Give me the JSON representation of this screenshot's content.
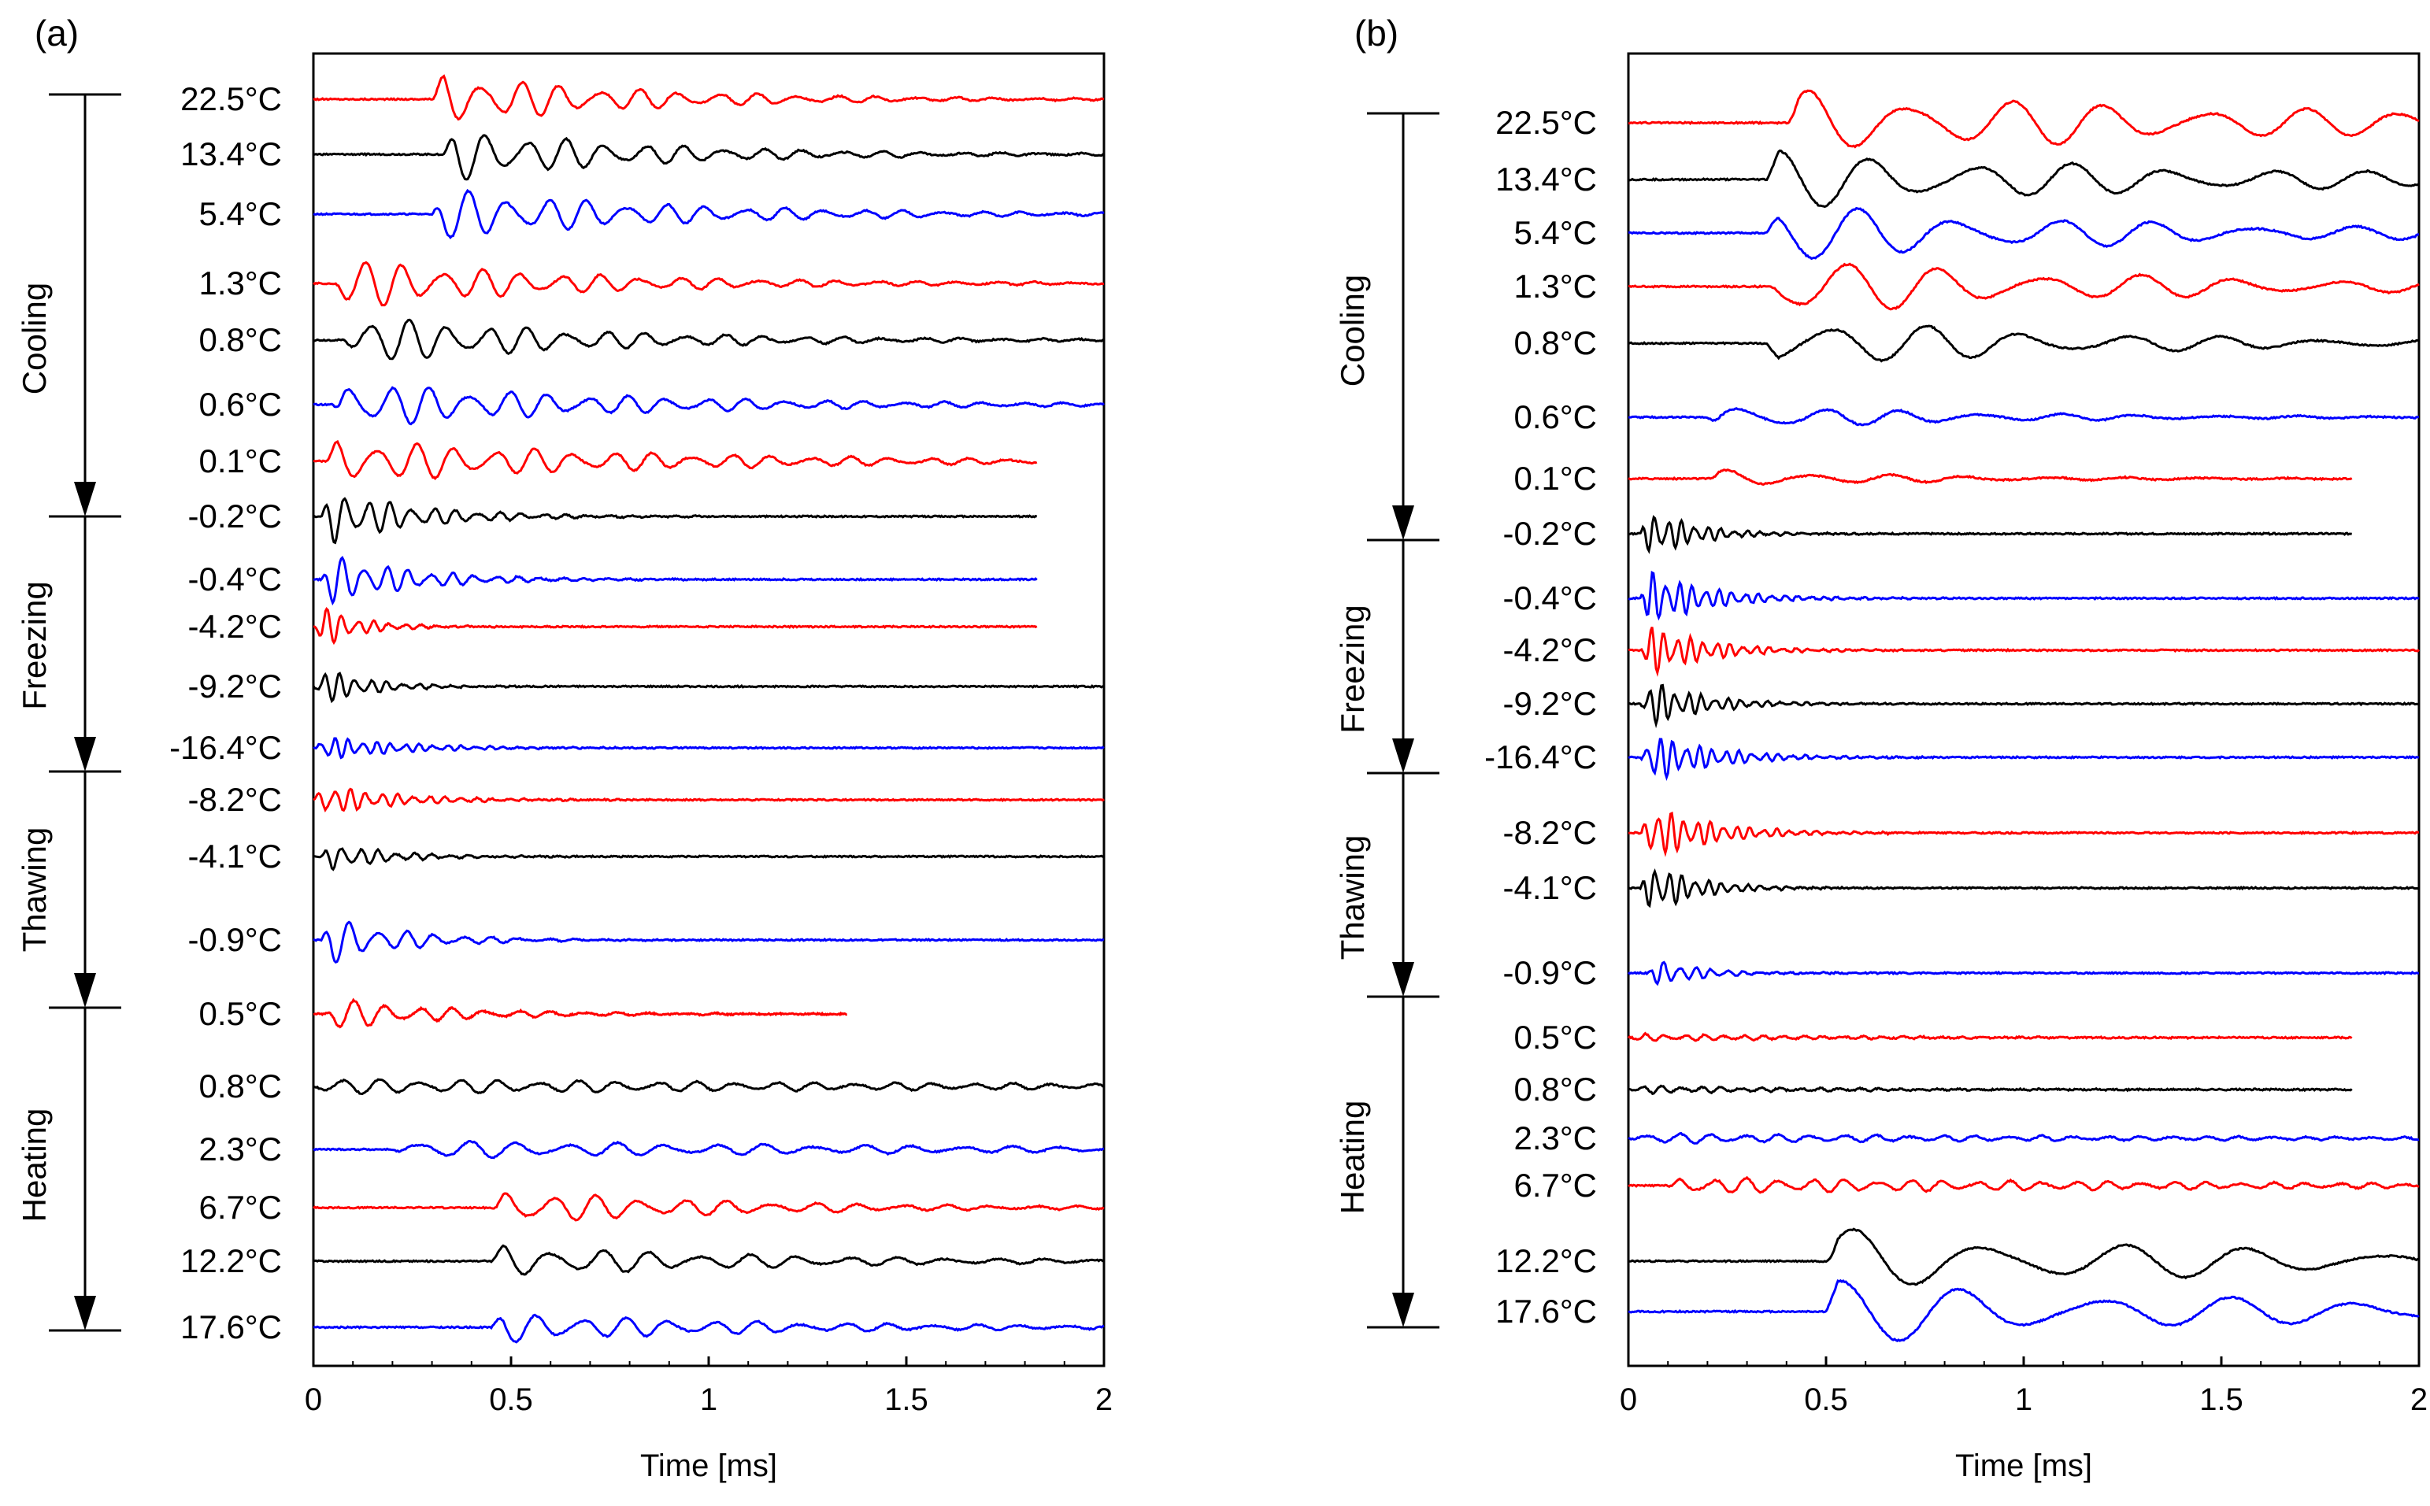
{
  "figure": {
    "colors": {
      "red": "#ff0000",
      "black": "#000000",
      "blue": "#0000ff",
      "axis": "#000000"
    }
  },
  "chart_data": [
    {
      "type": "line",
      "panel_label": "(a)",
      "title": "",
      "xlabel": "Time [ms]",
      "ylabel": "",
      "xlim": [
        0,
        2
      ],
      "x_ticks": [
        "0",
        "0.5",
        "1",
        "1.5",
        "2"
      ],
      "grid": false,
      "phases": [
        {
          "name": "Cooling",
          "from": "22.5°C",
          "to": "0.1°C"
        },
        {
          "name": "Freezing",
          "from": "-0.2°C",
          "to": "-16.4°C"
        },
        {
          "name": "Thawing",
          "from": "-8.2°C",
          "to": "-0.9°C"
        },
        {
          "name": "Heating",
          "from": "0.5°C",
          "to": "17.6°C"
        }
      ],
      "series": [
        {
          "name": "22.5°C",
          "color": "red",
          "end_ms": 2.0,
          "onset_ms": 0.3,
          "amp": 0.9,
          "freq_khz": 10,
          "decay": 0.5
        },
        {
          "name": "13.4°C",
          "color": "black",
          "end_ms": 2.0,
          "onset_ms": 0.33,
          "amp": 0.9,
          "freq_khz": 10,
          "decay": 0.5
        },
        {
          "name": "5.4°C",
          "color": "blue",
          "end_ms": 2.0,
          "onset_ms": 0.3,
          "amp": 0.85,
          "freq_khz": 10,
          "decay": 0.6
        },
        {
          "name": "1.3°C",
          "color": "red",
          "end_ms": 2.0,
          "onset_ms": 0.05,
          "amp": 0.85,
          "freq_khz": 10,
          "decay": 0.6
        },
        {
          "name": "0.8°C",
          "color": "black",
          "end_ms": 2.0,
          "onset_ms": 0.08,
          "amp": 0.85,
          "freq_khz": 10,
          "decay": 0.6
        },
        {
          "name": "0.6°C",
          "color": "blue",
          "end_ms": 2.0,
          "onset_ms": 0.05,
          "amp": 0.8,
          "freq_khz": 10,
          "decay": 0.7
        },
        {
          "name": "0.1°C",
          "color": "red",
          "end_ms": 1.83,
          "onset_ms": 0.03,
          "amp": 0.75,
          "freq_khz": 10,
          "decay": 0.8
        },
        {
          "name": "-0.2°C",
          "color": "black",
          "end_ms": 1.83,
          "onset_ms": 0.02,
          "amp": 1.0,
          "freq_khz": 18,
          "decay": 0.22
        },
        {
          "name": "-0.4°C",
          "color": "blue",
          "end_ms": 1.83,
          "onset_ms": 0.02,
          "amp": 0.9,
          "freq_khz": 18,
          "decay": 0.22
        },
        {
          "name": "-4.2°C",
          "color": "red",
          "end_ms": 1.83,
          "onset_ms": 0.0,
          "amp": 0.85,
          "freq_khz": 25,
          "decay": 0.1
        },
        {
          "name": "-9.2°C",
          "color": "black",
          "end_ms": 2.0,
          "onset_ms": 0.0,
          "amp": 0.75,
          "freq_khz": 25,
          "decay": 0.12
        },
        {
          "name": "-16.4°C",
          "color": "blue",
          "end_ms": 2.0,
          "onset_ms": 0.0,
          "amp": 0.45,
          "freq_khz": 28,
          "decay": 0.2
        },
        {
          "name": "-8.2°C",
          "color": "red",
          "end_ms": 2.0,
          "onset_ms": 0.0,
          "amp": 0.6,
          "freq_khz": 25,
          "decay": 0.18
        },
        {
          "name": "-4.1°C",
          "color": "black",
          "end_ms": 2.0,
          "onset_ms": 0.02,
          "amp": 0.55,
          "freq_khz": 22,
          "decay": 0.15
        },
        {
          "name": "-0.9°C",
          "color": "blue",
          "end_ms": 2.0,
          "onset_ms": 0.02,
          "amp": 0.85,
          "freq_khz": 14,
          "decay": 0.2
        },
        {
          "name": "0.5°C",
          "color": "red",
          "end_ms": 1.35,
          "onset_ms": 0.03,
          "amp": 0.55,
          "freq_khz": 12,
          "decay": 0.3
        },
        {
          "name": "0.8°C",
          "color": "black",
          "end_ms": 2.0,
          "onset_ms": 0.0,
          "amp": 0.25,
          "freq_khz": 10,
          "decay": 2.0
        },
        {
          "name": "2.3°C",
          "color": "blue",
          "end_ms": 2.0,
          "onset_ms": 0.2,
          "amp": 0.3,
          "freq_khz": 8,
          "decay": 1.5
        },
        {
          "name": "6.7°C",
          "color": "red",
          "end_ms": 2.0,
          "onset_ms": 0.45,
          "amp": 0.6,
          "freq_khz": 9,
          "decay": 0.6
        },
        {
          "name": "12.2°C",
          "color": "black",
          "end_ms": 2.0,
          "onset_ms": 0.45,
          "amp": 0.55,
          "freq_khz": 8,
          "decay": 0.7
        },
        {
          "name": "17.6°C",
          "color": "blue",
          "end_ms": 2.0,
          "onset_ms": 0.45,
          "amp": 0.5,
          "freq_khz": 9,
          "decay": 0.7
        }
      ]
    },
    {
      "type": "line",
      "panel_label": "(b)",
      "title": "",
      "xlabel": "Time [ms]",
      "ylabel": "",
      "xlim": [
        0,
        2
      ],
      "x_ticks": [
        "0",
        "0.5",
        "1",
        "1.5",
        "2"
      ],
      "grid": false,
      "phases": [
        {
          "name": "Cooling",
          "from": "22.5°C",
          "to": "0.1°C"
        },
        {
          "name": "Freezing",
          "from": "-0.2°C",
          "to": "-16.4°C"
        },
        {
          "name": "Thawing",
          "from": "-8.2°C",
          "to": "-0.9°C"
        },
        {
          "name": "Heating",
          "from": "0.5°C",
          "to": "17.6°C"
        }
      ],
      "series": [
        {
          "name": "22.5°C",
          "color": "red",
          "end_ms": 2.0,
          "onset_ms": 0.4,
          "amp": 1.0,
          "freq_khz": 4,
          "decay": 1.5
        },
        {
          "name": "13.4°C",
          "color": "black",
          "end_ms": 2.0,
          "onset_ms": 0.35,
          "amp": 0.9,
          "freq_khz": 4,
          "decay": 1.2
        },
        {
          "name": "5.4°C",
          "color": "blue",
          "end_ms": 2.0,
          "onset_ms": 0.35,
          "amp": 0.9,
          "freq_khz": 4,
          "decay": 1.0
        },
        {
          "name": "1.3°C",
          "color": "red",
          "end_ms": 2.0,
          "onset_ms": 0.35,
          "amp": 0.9,
          "freq_khz": 4,
          "decay": 1.0
        },
        {
          "name": "0.8°C",
          "color": "black",
          "end_ms": 2.0,
          "onset_ms": 0.35,
          "amp": 0.85,
          "freq_khz": 4,
          "decay": 0.8
        },
        {
          "name": "0.6°C",
          "color": "blue",
          "end_ms": 2.0,
          "onset_ms": 0.2,
          "amp": 0.45,
          "freq_khz": 5,
          "decay": 0.6
        },
        {
          "name": "0.1°C",
          "color": "red",
          "end_ms": 1.83,
          "onset_ms": 0.2,
          "amp": 0.3,
          "freq_khz": 5,
          "decay": 0.5
        },
        {
          "name": "-0.2°C",
          "color": "black",
          "end_ms": 1.83,
          "onset_ms": 0.03,
          "amp": 0.9,
          "freq_khz": 30,
          "decay": 0.12
        },
        {
          "name": "-0.4°C",
          "color": "blue",
          "end_ms": 2.0,
          "onset_ms": 0.03,
          "amp": 1.0,
          "freq_khz": 30,
          "decay": 0.15
        },
        {
          "name": "-4.2°C",
          "color": "red",
          "end_ms": 2.0,
          "onset_ms": 0.03,
          "amp": 0.9,
          "freq_khz": 30,
          "decay": 0.15
        },
        {
          "name": "-9.2°C",
          "color": "black",
          "end_ms": 2.0,
          "onset_ms": 0.03,
          "amp": 0.85,
          "freq_khz": 30,
          "decay": 0.14
        },
        {
          "name": "-16.4°C",
          "color": "blue",
          "end_ms": 2.0,
          "onset_ms": 0.03,
          "amp": 0.9,
          "freq_khz": 30,
          "decay": 0.16
        },
        {
          "name": "-8.2°C",
          "color": "red",
          "end_ms": 2.0,
          "onset_ms": 0.03,
          "amp": 1.0,
          "freq_khz": 30,
          "decay": 0.16
        },
        {
          "name": "-4.1°C",
          "color": "black",
          "end_ms": 2.0,
          "onset_ms": 0.03,
          "amp": 1.0,
          "freq_khz": 30,
          "decay": 0.12
        },
        {
          "name": "-0.9°C",
          "color": "blue",
          "end_ms": 2.0,
          "onset_ms": 0.05,
          "amp": 0.5,
          "freq_khz": 25,
          "decay": 0.12
        },
        {
          "name": "0.5°C",
          "color": "red",
          "end_ms": 1.83,
          "onset_ms": 0.0,
          "amp": 0.12,
          "freq_khz": 20,
          "decay": 0.5
        },
        {
          "name": "0.8°C",
          "color": "black",
          "end_ms": 1.83,
          "onset_ms": 0.0,
          "amp": 0.12,
          "freq_khz": 20,
          "decay": 0.5
        },
        {
          "name": "2.3°C",
          "color": "blue",
          "end_ms": 2.0,
          "onset_ms": 0.0,
          "amp": 0.15,
          "freq_khz": 12,
          "decay": 1.5
        },
        {
          "name": "6.7°C",
          "color": "red",
          "end_ms": 2.0,
          "onset_ms": 0.1,
          "amp": 0.25,
          "freq_khz": 12,
          "decay": 1.5
        },
        {
          "name": "12.2°C",
          "color": "black",
          "end_ms": 2.0,
          "onset_ms": 0.5,
          "amp": 1.0,
          "freq_khz": 3,
          "decay": 1.2
        },
        {
          "name": "17.6°C",
          "color": "blue",
          "end_ms": 2.0,
          "onset_ms": 0.5,
          "amp": 1.0,
          "freq_khz": 3,
          "decay": 1.2
        }
      ]
    }
  ]
}
